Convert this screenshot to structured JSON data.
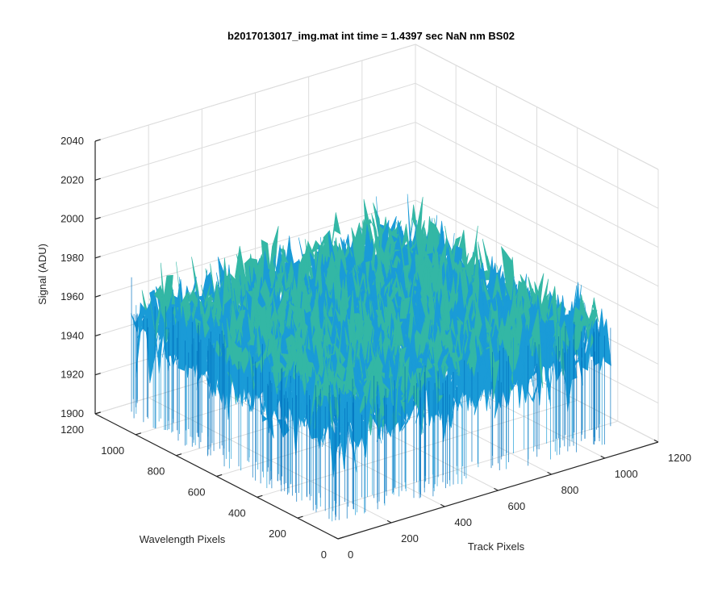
{
  "chart_data": {
    "type": "surface",
    "title": "b2017013017_img.mat int time = 1.4397 sec  NaN nm BS02",
    "xlabel": "Track Pixels",
    "ylabel": "Wavelength Pixels",
    "zlabel": "Signal (ADU)",
    "xlim": [
      0,
      1200
    ],
    "ylim": [
      0,
      1200
    ],
    "zlim": [
      1900,
      2040
    ],
    "x_ticks": [
      "0",
      "200",
      "400",
      "600",
      "800",
      "1000",
      "1200"
    ],
    "y_ticks": [
      "0",
      "200",
      "400",
      "600",
      "800",
      "1000",
      "1200"
    ],
    "z_ticks": [
      "1900",
      "1920",
      "1940",
      "1960",
      "1980",
      "2000",
      "2020",
      "2040"
    ],
    "data_extent": {
      "x": [
        1,
        1024
      ],
      "y": [
        1,
        1024
      ]
    },
    "signal": {
      "mean": 1958,
      "min": 1925,
      "max": 2022
    },
    "grid": true,
    "colormap": [
      "#0072bd",
      "#1a9bd7",
      "#33b7a5",
      "#8dc764",
      "#d9c84a"
    ]
  }
}
